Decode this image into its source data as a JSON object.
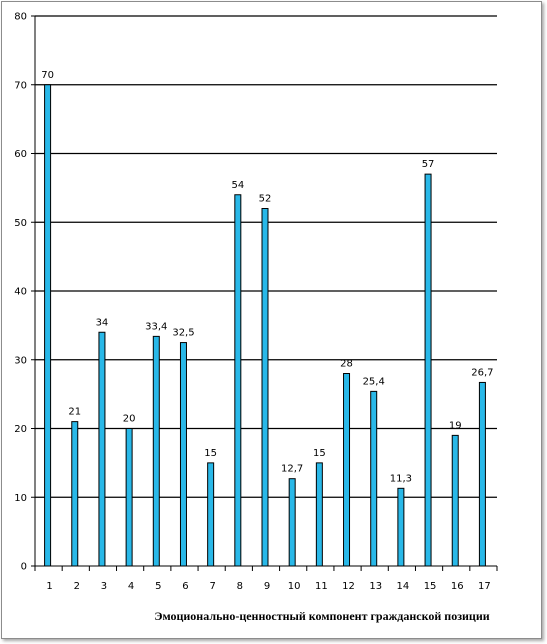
{
  "chart_data": {
    "type": "bar",
    "categories": [
      "1",
      "2",
      "3",
      "4",
      "5",
      "6",
      "7",
      "8",
      "9",
      "10",
      "11",
      "12",
      "13",
      "14",
      "15",
      "16",
      "17"
    ],
    "values": [
      70,
      21,
      34,
      20,
      33.4,
      32.5,
      15,
      54,
      52,
      12.7,
      15,
      28,
      25.4,
      11.3,
      57,
      19,
      26.7
    ],
    "data_labels": [
      "70",
      "21",
      "34",
      "20",
      "33,4",
      "32,5",
      "15",
      "54",
      "52",
      "12,7",
      "15",
      "28",
      "25,4",
      "11,3",
      "57",
      "19",
      "26,7"
    ],
    "yticks": [
      "0",
      "10",
      "20",
      "30",
      "40",
      "50",
      "60",
      "70",
      "80"
    ],
    "ylim": [
      0,
      80
    ],
    "title": "",
    "xlabel": "Эмоционально-ценностный компонент гражданской позиции",
    "ylabel": "",
    "grid": true,
    "legend": "none",
    "bar_color": "#29b8e8",
    "bar_edge_color": "#000000"
  }
}
